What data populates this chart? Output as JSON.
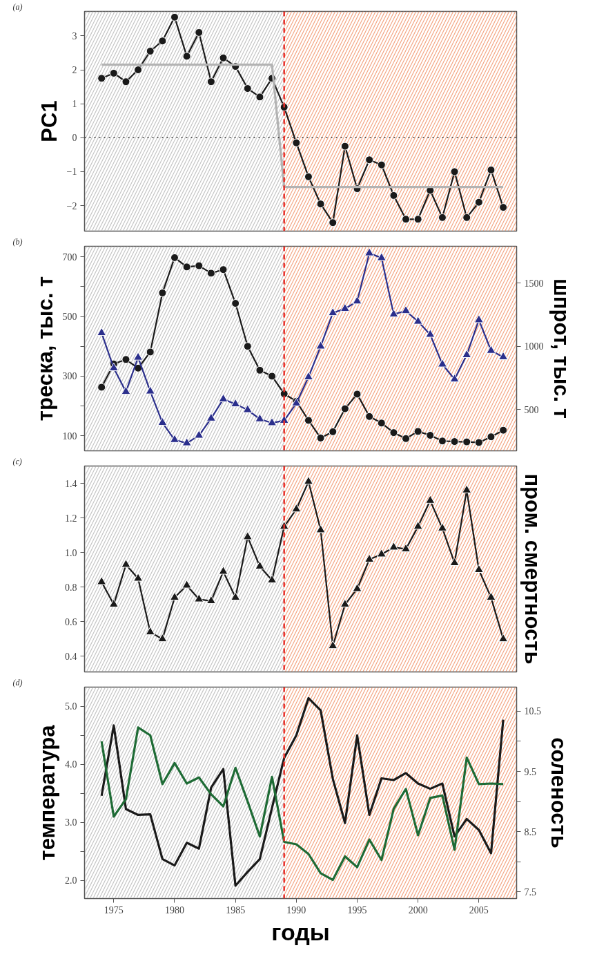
{
  "chart_data": [
    {
      "type": "line",
      "annotations": [
        "(a)"
      ],
      "ylabel": "PC1",
      "x": [
        1974,
        1975,
        1976,
        1977,
        1978,
        1979,
        1980,
        1981,
        1982,
        1983,
        1984,
        1985,
        1986,
        1987,
        1988,
        1989,
        1990,
        1991,
        1992,
        1993,
        1994,
        1995,
        1996,
        1997,
        1998,
        1999,
        2000,
        2001,
        2002,
        2003,
        2004,
        2005,
        2006,
        2007
      ],
      "xlim": [
        1972.6,
        2008.1
      ],
      "xticks": [
        1975,
        1980,
        1985,
        1990,
        1995,
        2000,
        2005
      ],
      "ylim": [
        -2.75,
        3.72
      ],
      "yticks": [
        {
          "value": -2,
          "label": "−2"
        },
        {
          "value": -1,
          "label": "−1"
        },
        0,
        1,
        2,
        3
      ],
      "tick_labels": "y",
      "grid": false,
      "legend": false,
      "marker": "circle",
      "series": [
        {
          "color": "#1a1a1a",
          "values": [
            1.75,
            1.9,
            1.65,
            2.0,
            2.55,
            2.85,
            3.55,
            2.4,
            3.1,
            1.65,
            2.35,
            2.1,
            1.45,
            1.2,
            1.75,
            0.9,
            -0.15,
            -1.15,
            -1.95,
            -2.5,
            -0.25,
            -1.5,
            -0.65,
            -0.8,
            -1.7,
            -2.4,
            -2.4,
            -1.55,
            -2.35,
            -1.0,
            -2.35,
            -1.9,
            -0.95,
            -2.05
          ]
        },
        {
          "color": "#b3b3b3",
          "marker": "none",
          "x": [
            1974,
            1988,
            1989,
            2007
          ],
          "values": [
            2.15,
            2.15,
            -1.45,
            -1.45
          ]
        }
      ],
      "ref_lines": [
        {
          "axis": "y",
          "value": 0,
          "color": "#333333",
          "line_style": "dotted"
        },
        {
          "axis": "x",
          "value": 1989,
          "color": "#e8302a",
          "line_style": "dashed"
        }
      ],
      "bands": [
        {
          "axis": "x",
          "from": 1972.6,
          "to": 1989,
          "color": "#c4c4c4"
        },
        {
          "axis": "x",
          "from": 1989,
          "to": 2008.1,
          "color": "#f4a582"
        }
      ]
    },
    {
      "type": "line",
      "annotations": [
        "(b)"
      ],
      "ylabel": "треска, тыс. т",
      "y2label": "шпрот, тыс. т",
      "x": [
        1974,
        1975,
        1976,
        1977,
        1978,
        1979,
        1980,
        1981,
        1982,
        1983,
        1984,
        1985,
        1986,
        1987,
        1988,
        1989,
        1990,
        1991,
        1992,
        1993,
        1994,
        1995,
        1996,
        1997,
        1998,
        1999,
        2000,
        2001,
        2002,
        2003,
        2004,
        2005,
        2006,
        2007
      ],
      "xlim": [
        1972.6,
        2008.1
      ],
      "xticks": [
        1975,
        1980,
        1985,
        1990,
        1995,
        2000,
        2005
      ],
      "ylim": [
        50,
        735
      ],
      "yticks": [
        100,
        {
          "value": 200,
          "label": null
        },
        300,
        {
          "value": 400,
          "label": null
        },
        500,
        {
          "value": 600,
          "label": null
        },
        700
      ],
      "y2lim": [
        175,
        1790
      ],
      "y2ticks": [
        500,
        1000,
        1500
      ],
      "tick_labels": "y",
      "grid": false,
      "legend": false,
      "series": [
        {
          "color": "#1a1a1a",
          "marker": "circle",
          "values": [
            263,
            341,
            356,
            327,
            381,
            579,
            697,
            666,
            670,
            645,
            657,
            544,
            400,
            320,
            300,
            241,
            216,
            152,
            93,
            114,
            191,
            240,
            165,
            143,
            111,
            91,
            115,
            102,
            83,
            81,
            80,
            78,
            97,
            119
          ]
        },
        {
          "color": "#2b2f8c",
          "marker": "triangle",
          "axis": "y2",
          "values": [
            1106,
            828,
            642,
            912,
            645,
            397,
            262,
            236,
            296,
            431,
            583,
            544,
            498,
            426,
            395,
            414,
            550,
            757,
            1000,
            1264,
            1297,
            1356,
            1736,
            1698,
            1253,
            1280,
            1196,
            1093,
            858,
            740,
            932,
            1208,
            966,
            916
          ]
        }
      ],
      "ref_lines": [
        {
          "axis": "x",
          "value": 1989,
          "color": "#e8302a",
          "line_style": "dashed"
        }
      ],
      "bands": [
        {
          "axis": "x",
          "from": 1972.6,
          "to": 1989,
          "color": "#c4c4c4"
        },
        {
          "axis": "x",
          "from": 1989,
          "to": 2008.1,
          "color": "#f4a582"
        }
      ]
    },
    {
      "type": "line",
      "annotations": [
        "(c)"
      ],
      "y2label": "пром. смертность",
      "x": [
        1974,
        1975,
        1976,
        1977,
        1978,
        1979,
        1980,
        1981,
        1982,
        1983,
        1984,
        1985,
        1986,
        1987,
        1988,
        1989,
        1990,
        1991,
        1992,
        1993,
        1994,
        1995,
        1996,
        1997,
        1998,
        1999,
        2000,
        2001,
        2002,
        2003,
        2004,
        2005,
        2006,
        2007
      ],
      "xlim": [
        1972.6,
        2008.1
      ],
      "xticks": [
        1975,
        1980,
        1985,
        1990,
        1995,
        2000,
        2005
      ],
      "ylim": [
        0.31,
        1.5
      ],
      "yticks": [
        {
          "value": 0.4,
          "label": "0.4"
        },
        {
          "value": 0.6,
          "label": "0.6"
        },
        {
          "value": 0.8,
          "label": "0.8"
        },
        {
          "value": 1.0,
          "label": "1.0"
        },
        {
          "value": 1.2,
          "label": "1.2"
        },
        {
          "value": 1.4,
          "label": "1.4"
        }
      ],
      "tick_labels": "y",
      "grid": false,
      "legend": false,
      "marker": "triangle",
      "series": [
        {
          "color": "#1a1a1a",
          "values": [
            0.83,
            0.7,
            0.93,
            0.85,
            0.54,
            0.5,
            0.74,
            0.81,
            0.73,
            0.72,
            0.89,
            0.74,
            1.09,
            0.92,
            0.84,
            1.15,
            1.25,
            1.41,
            1.13,
            0.46,
            0.7,
            0.79,
            0.96,
            0.99,
            1.03,
            1.02,
            1.15,
            1.3,
            1.14,
            0.94,
            1.36,
            0.9,
            0.74,
            0.5
          ]
        }
      ],
      "ref_lines": [
        {
          "axis": "x",
          "value": 1989,
          "color": "#e8302a",
          "line_style": "dashed"
        }
      ],
      "bands": [
        {
          "axis": "x",
          "from": 1972.6,
          "to": 1989,
          "color": "#c4c4c4"
        },
        {
          "axis": "x",
          "from": 1989,
          "to": 2008.1,
          "color": "#f4a582"
        }
      ]
    },
    {
      "type": "line",
      "annotations": [
        "(d)"
      ],
      "ylabel": "температура",
      "y2label": "соленость",
      "xlabel": "годы",
      "x": [
        1974,
        1975,
        1976,
        1977,
        1978,
        1979,
        1980,
        1981,
        1982,
        1983,
        1984,
        1985,
        1986,
        1987,
        1988,
        1989,
        1990,
        1991,
        1992,
        1993,
        1994,
        1995,
        1996,
        1997,
        1998,
        1999,
        2000,
        2001,
        2002,
        2003,
        2004,
        2005,
        2006,
        2007
      ],
      "xlim": [
        1972.6,
        2008.1
      ],
      "xticks": [
        1975,
        1980,
        1985,
        1990,
        1995,
        2000,
        2005
      ],
      "ylim": [
        1.69,
        5.33
      ],
      "yticks": [
        {
          "value": 2,
          "label": "2.0"
        },
        {
          "value": 2.5,
          "label": null
        },
        {
          "value": 3,
          "label": "3.0"
        },
        {
          "value": 3.5,
          "label": null
        },
        {
          "value": 4,
          "label": "4.0"
        },
        {
          "value": 4.5,
          "label": null
        },
        {
          "value": 5,
          "label": "5.0"
        }
      ],
      "y2lim": [
        7.39,
        10.9
      ],
      "y2ticks": [
        7.5,
        {
          "value": 8,
          "label": null
        },
        8.5,
        {
          "value": 9,
          "label": null
        },
        9.5,
        {
          "value": 10,
          "label": null
        },
        10.5
      ],
      "grid": false,
      "legend": false,
      "series": [
        {
          "color": "#1a1a1a",
          "values": [
            3.46,
            4.67,
            3.23,
            3.13,
            3.14,
            2.37,
            2.26,
            2.65,
            2.55,
            3.6,
            3.92,
            1.91,
            2.15,
            2.37,
            3.25,
            4.11,
            4.5,
            5.14,
            4.93,
            3.75,
            2.99,
            4.5,
            3.13,
            3.76,
            3.73,
            3.85,
            3.67,
            3.58,
            3.67,
            2.76,
            3.06,
            2.87,
            2.47,
            4.77
          ]
        },
        {
          "color": "#1e6b35",
          "axis": "y2",
          "values": [
            10.0,
            8.75,
            9.04,
            10.23,
            10.1,
            9.29,
            9.64,
            9.3,
            9.4,
            9.12,
            8.92,
            9.56,
            9.0,
            8.42,
            9.41,
            8.33,
            8.29,
            8.13,
            7.81,
            7.7,
            8.09,
            7.91,
            8.37,
            8.03,
            8.88,
            9.21,
            8.44,
            9.06,
            9.1,
            8.2,
            9.73,
            9.29,
            9.3,
            9.29
          ]
        }
      ],
      "ref_lines": [
        {
          "axis": "x",
          "value": 1989,
          "color": "#e8302a",
          "line_style": "dashed"
        }
      ],
      "bands": [
        {
          "axis": "x",
          "from": 1972.6,
          "to": 1989,
          "color": "#c4c4c4"
        },
        {
          "axis": "x",
          "from": 1989,
          "to": 2008.1,
          "color": "#f4a582"
        }
      ]
    }
  ]
}
